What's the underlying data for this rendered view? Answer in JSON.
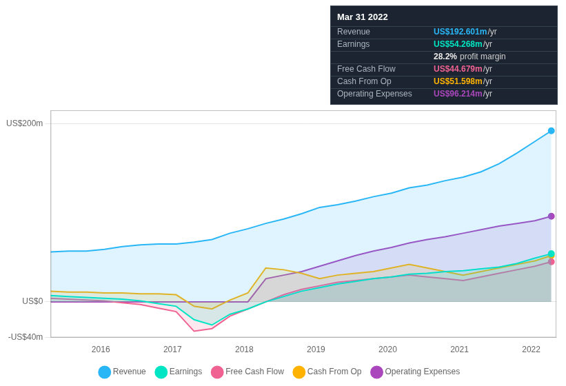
{
  "chart_data": {
    "type": "area",
    "x": [
      2015.3,
      2015.55,
      2015.8,
      2016.05,
      2016.3,
      2016.55,
      2016.8,
      2017.05,
      2017.3,
      2017.55,
      2017.8,
      2018.05,
      2018.3,
      2018.55,
      2018.8,
      2019.05,
      2019.3,
      2019.55,
      2019.8,
      2020.05,
      2020.3,
      2020.55,
      2020.8,
      2021.05,
      2021.3,
      2021.55,
      2021.8,
      2022.05,
      2022.28
    ],
    "series": [
      {
        "name": "Revenue",
        "color": "#29b6f6",
        "values": [
          56,
          57,
          57,
          59,
          62,
          64,
          65,
          65,
          67,
          70,
          77,
          82,
          88,
          93,
          99,
          106,
          109,
          113,
          118,
          122,
          128,
          131,
          136,
          140,
          146,
          155,
          167,
          180,
          192
        ]
      },
      {
        "name": "Earnings",
        "color": "#00e5c3",
        "values": [
          7,
          6,
          5,
          4,
          3,
          1,
          -2,
          -5,
          -20,
          -26,
          -14,
          -8,
          0,
          6,
          12,
          16,
          20,
          23,
          26,
          28,
          31,
          32,
          34,
          35,
          37,
          39,
          43,
          49,
          54
        ]
      },
      {
        "name": "Free Cash Flow",
        "color": "#f06292",
        "values": [
          4,
          3,
          2,
          1,
          -1,
          -3,
          -7,
          -11,
          -33,
          -30,
          -16,
          -8,
          0,
          8,
          14,
          18,
          22,
          24,
          26,
          28,
          30,
          28,
          26,
          24,
          28,
          32,
          36,
          40,
          45
        ]
      },
      {
        "name": "Cash From Op",
        "color": "#ffb300",
        "values": [
          12,
          11,
          11,
          10,
          10,
          9,
          9,
          8,
          -5,
          -8,
          2,
          10,
          38,
          36,
          32,
          26,
          30,
          32,
          34,
          38,
          42,
          38,
          34,
          30,
          34,
          38,
          42,
          46,
          52
        ]
      },
      {
        "name": "Operating Expenses",
        "color": "#ab47bc",
        "values": [
          0,
          0,
          0,
          0,
          0,
          0,
          0,
          0,
          0,
          0,
          0,
          0,
          26,
          30,
          34,
          40,
          46,
          52,
          57,
          61,
          66,
          70,
          73,
          77,
          81,
          85,
          88,
          91,
          96
        ]
      }
    ],
    "xlim": [
      2015.3,
      2022.35
    ],
    "xticks": [
      2016,
      2017,
      2018,
      2019,
      2020,
      2021,
      2022
    ],
    "ylim": [
      -40,
      215
    ],
    "yticks": [
      {
        "value": -40,
        "label": "-US$40m"
      },
      {
        "value": 0,
        "label": "US$0"
      },
      {
        "value": 200,
        "label": "US$200m"
      }
    ],
    "grid": "y",
    "legend": "bottom",
    "annotations": {
      "title": "Mar 31 2022",
      "rows": [
        {
          "label": "Revenue",
          "value": "US$192.601m",
          "unit": "/yr",
          "color": "#29b6f6"
        },
        {
          "label": "Earnings",
          "value": "US$54.268m",
          "unit": "/yr",
          "color": "#00e5c3"
        },
        {
          "value": "28.2%",
          "unit": "profit margin",
          "color": "#e8e8e8"
        },
        {
          "label": "Free Cash Flow",
          "value": "US$44.679m",
          "unit": "/yr",
          "color": "#f06292"
        },
        {
          "label": "Cash From Op",
          "value": "US$51.598m",
          "unit": "/yr",
          "color": "#ffb300"
        },
        {
          "label": "Operating Expenses",
          "value": "US$96.214m",
          "unit": "/yr",
          "color": "#ab47bc"
        }
      ]
    }
  }
}
